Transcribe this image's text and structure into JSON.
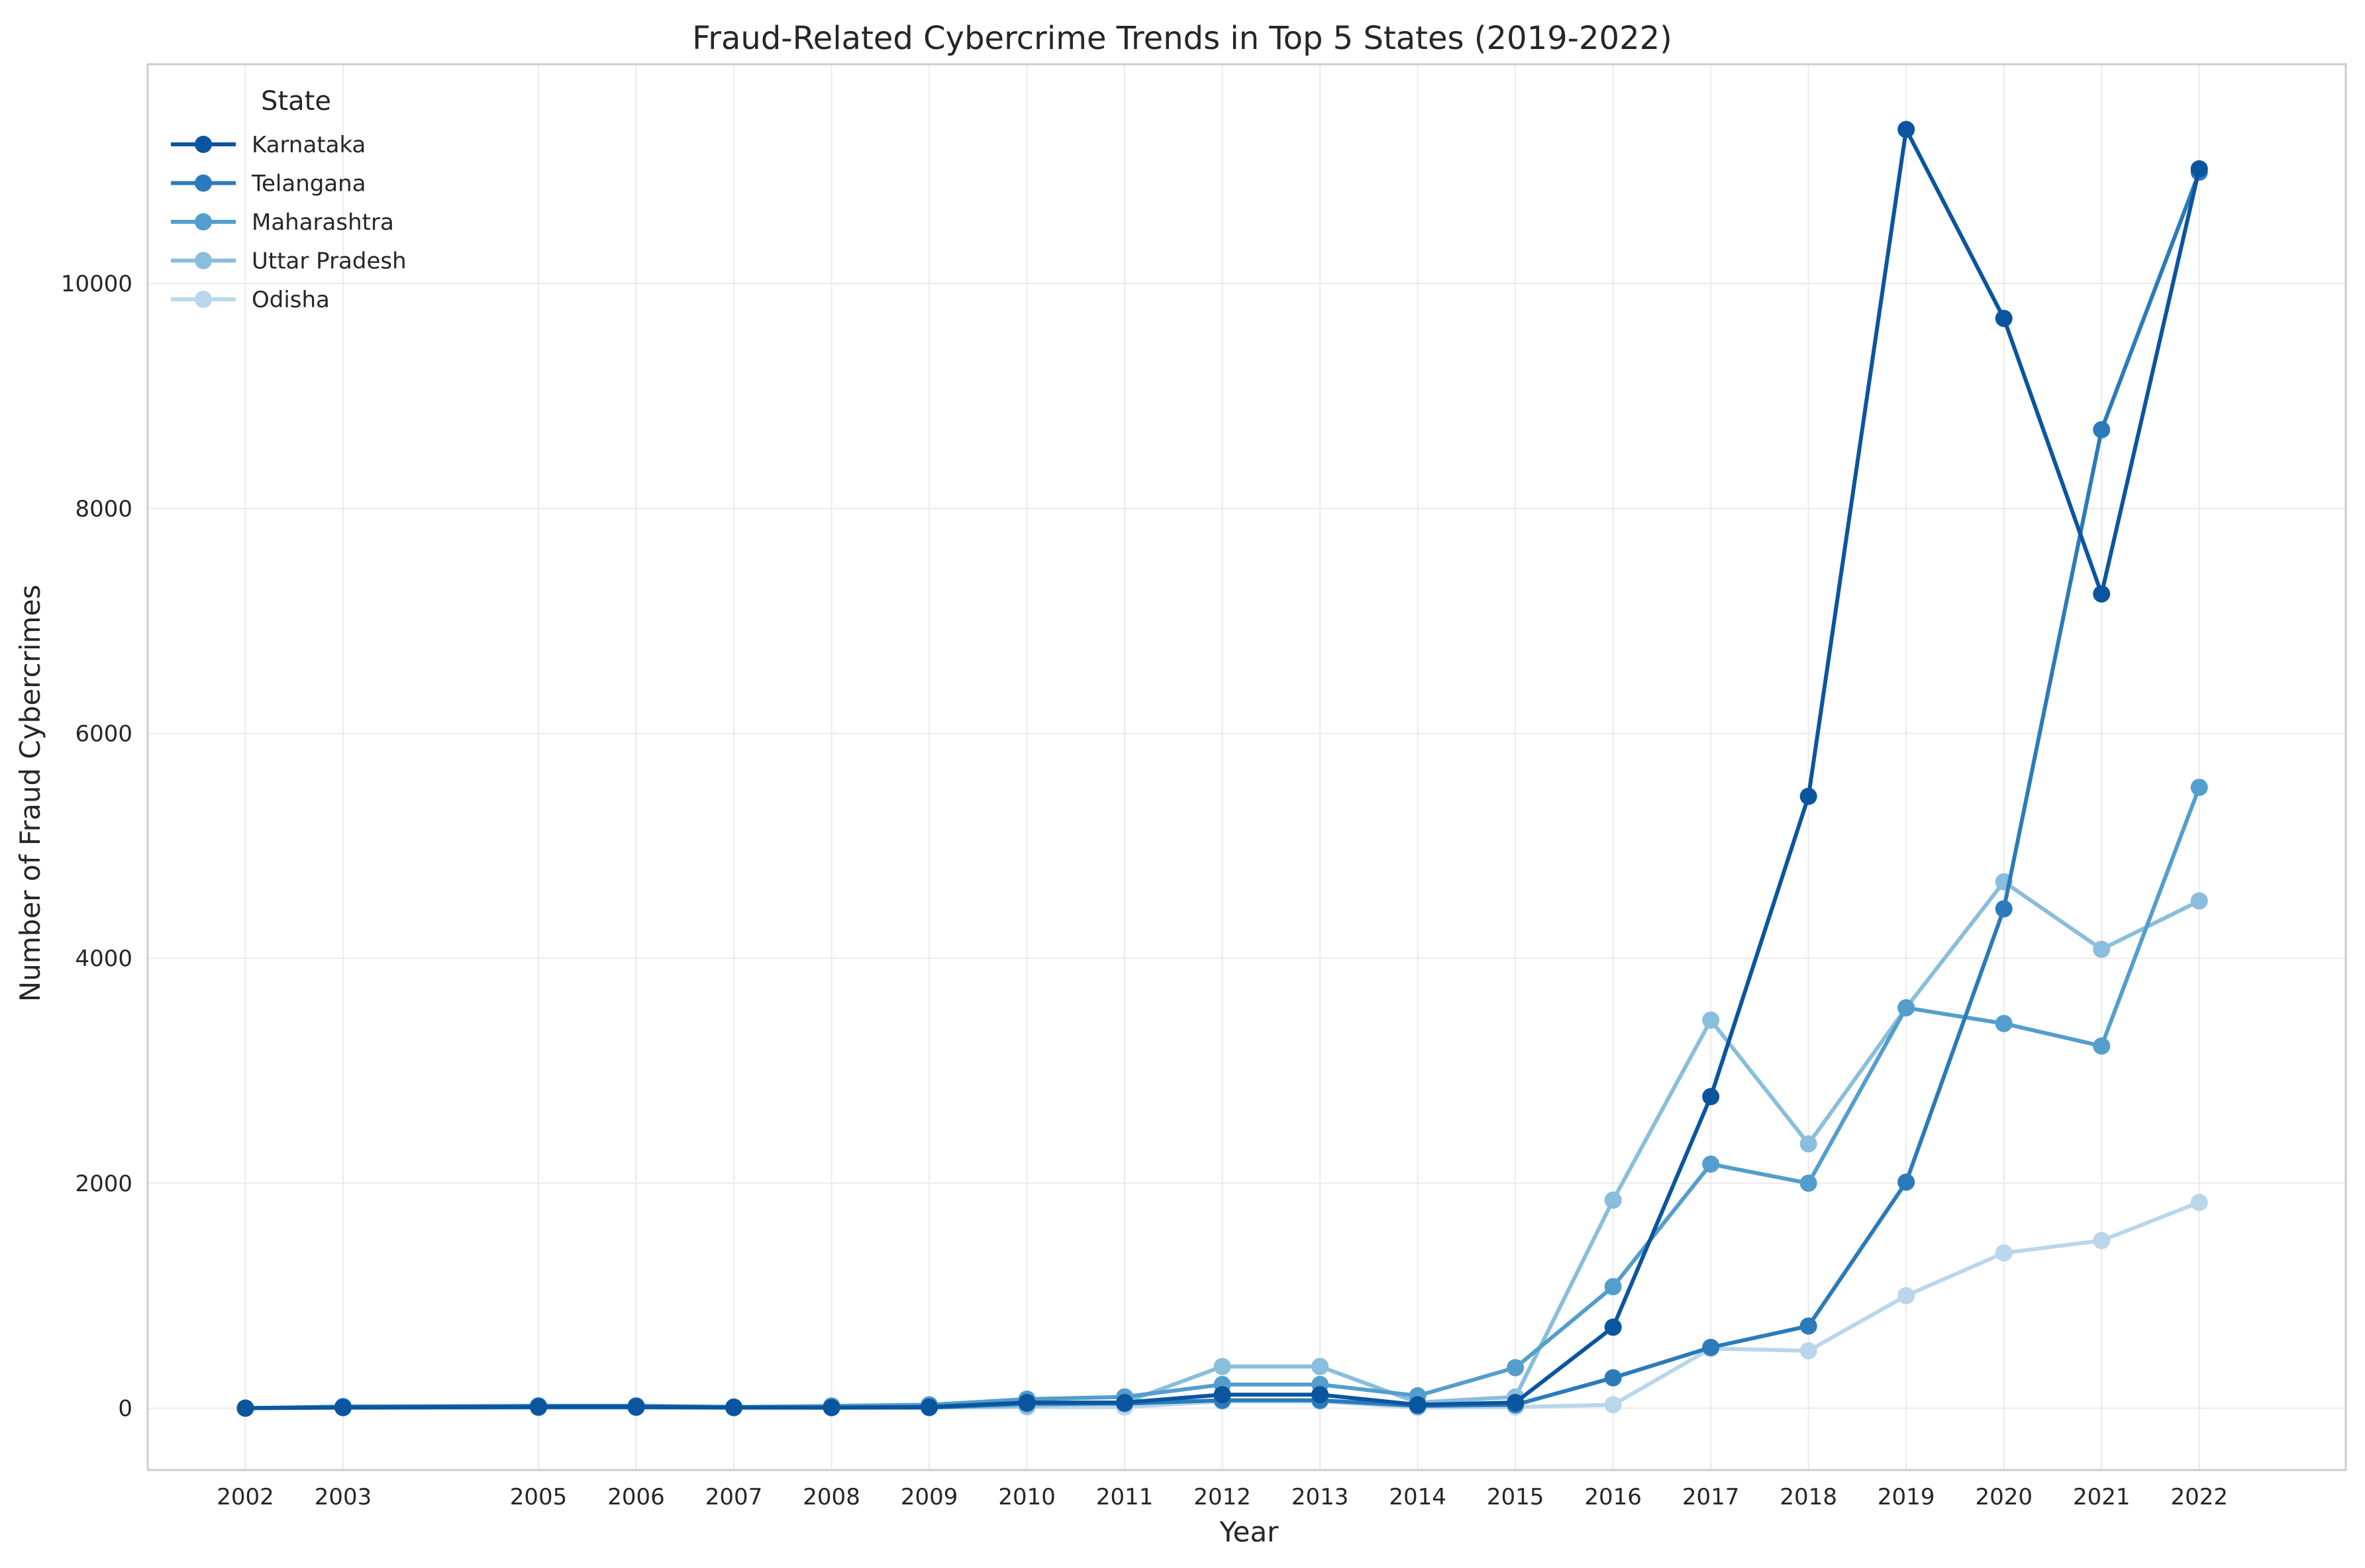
{
  "chart_data": {
    "type": "line",
    "title": "Fraud-Related Cybercrime Trends in Top 5 States (2019-2022)",
    "xlabel": "Year",
    "ylabel": "Number of Fraud Cybercrimes",
    "x": [
      2002,
      2003,
      2005,
      2006,
      2007,
      2008,
      2009,
      2010,
      2011,
      2012,
      2013,
      2014,
      2015,
      2016,
      2017,
      2018,
      2019,
      2020,
      2021,
      2022
    ],
    "x_ticks": [
      "2002",
      "2003",
      "2005",
      "2006",
      "2007",
      "2008",
      "2009",
      "2010",
      "2011",
      "2012",
      "2013",
      "2014",
      "2015",
      "2016",
      "2017",
      "2018",
      "2019",
      "2020",
      "2021",
      "2022"
    ],
    "xlim": [
      2001,
      2023.5
    ],
    "ylim": [
      -550,
      11950
    ],
    "y_ticks": [
      0,
      2000,
      4000,
      6000,
      8000,
      10000
    ],
    "y_tick_labels": [
      "0",
      "2000",
      "4000",
      "6000",
      "8000",
      "10000"
    ],
    "grid": true,
    "legend": {
      "title": "State",
      "placement": "top-left"
    },
    "series": [
      {
        "name": "Karnataka",
        "color": "#0b559f",
        "values": [
          0,
          5,
          10,
          10,
          5,
          5,
          10,
          50,
          50,
          120,
          120,
          30,
          50,
          720,
          2770,
          5440,
          11370,
          9690,
          7240,
          11020
        ]
      },
      {
        "name": "Telangana",
        "color": "#2b7bba",
        "values": [
          0,
          10,
          20,
          20,
          10,
          5,
          5,
          40,
          40,
          70,
          70,
          20,
          30,
          270,
          540,
          730,
          2010,
          4440,
          8700,
          10990
        ]
      },
      {
        "name": "Maharashtra",
        "color": "#539ecd",
        "values": [
          0,
          15,
          20,
          20,
          10,
          20,
          30,
          80,
          100,
          210,
          210,
          110,
          360,
          1080,
          2170,
          2000,
          3560,
          3420,
          3220,
          5520
        ]
      },
      {
        "name": "Uttar Pradesh",
        "color": "#89bedc",
        "values": [
          0,
          5,
          5,
          5,
          5,
          5,
          5,
          20,
          50,
          370,
          370,
          50,
          100,
          1850,
          3450,
          2350,
          3560,
          4680,
          4080,
          4510
        ]
      },
      {
        "name": "Odisha",
        "color": "#bad6eb",
        "values": [
          0,
          5,
          5,
          5,
          5,
          5,
          5,
          10,
          10,
          60,
          60,
          5,
          10,
          30,
          530,
          510,
          1000,
          1380,
          1490,
          1830
        ]
      }
    ]
  }
}
